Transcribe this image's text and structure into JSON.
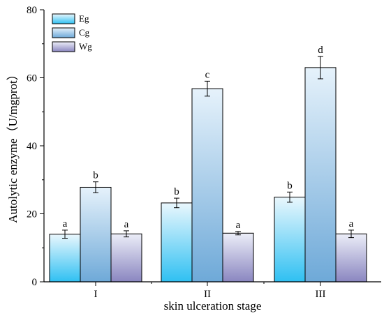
{
  "chart_data": {
    "type": "bar",
    "title": "",
    "xlabel": "skin ulceration stage",
    "ylabel": "Autolytic enzyme（U/mgprot）",
    "categories": [
      "I",
      "II",
      "III"
    ],
    "ylim": [
      0,
      80
    ],
    "yticks": [
      0,
      20,
      40,
      60,
      80
    ],
    "grid": false,
    "legend_position": "top-left",
    "series": [
      {
        "name": "Eg",
        "values": [
          14.0,
          23.2,
          24.9
        ],
        "errors": [
          1.2,
          1.4,
          1.5
        ],
        "labels": [
          "a",
          "b",
          "b"
        ],
        "gradient": [
          "#eaf7fd",
          "#2fc0f2"
        ]
      },
      {
        "name": "Cg",
        "values": [
          27.8,
          56.8,
          63.0
        ],
        "errors": [
          1.6,
          2.2,
          3.3
        ],
        "labels": [
          "b",
          "c",
          "d"
        ],
        "gradient": [
          "#e6f2fb",
          "#6ea9d8"
        ]
      },
      {
        "name": "Wg",
        "values": [
          14.1,
          14.3,
          14.1
        ],
        "errors": [
          0.9,
          0.5,
          1.1
        ],
        "labels": [
          "a",
          "a",
          "a"
        ],
        "gradient": [
          "#eceef8",
          "#8a86c0"
        ]
      }
    ]
  }
}
